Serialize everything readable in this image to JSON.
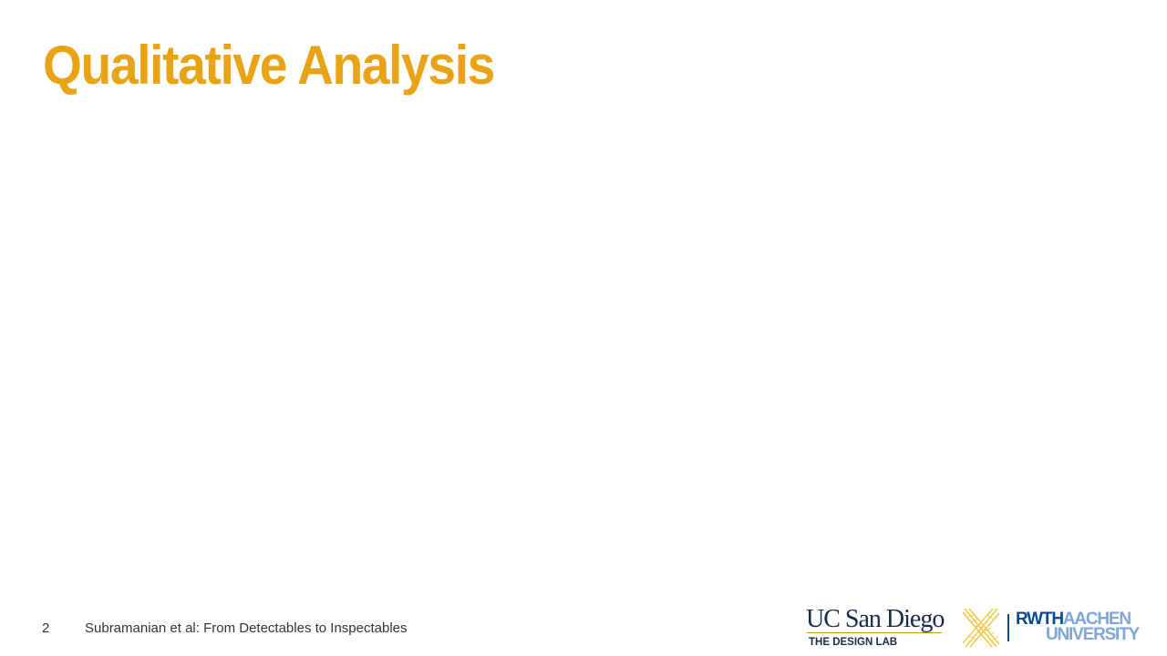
{
  "slide": {
    "title": "Qualitative Analysis"
  },
  "footer": {
    "page_number": "2",
    "citation": "Subramanian et al: From Detectables to Inspectables"
  },
  "logos": {
    "ucsd_wordmark": "UC San Diego",
    "ucsd_subtitle": "THE DESIGN LAB",
    "x_mark_icon": "x-mark-icon",
    "rwth_line1_strong": "RWTH",
    "rwth_line1_light": "AACHEN",
    "rwth_line2": "UNIVERSITY"
  },
  "colors": {
    "title": "#e8a317",
    "footer_text": "#333333",
    "ucsd_navy": "#182b49",
    "ucsd_gold": "#c69214",
    "rwth_blue": "#0b4a8f",
    "rwth_light_blue": "#7ea6d6",
    "x_mark": "#f2c94c"
  }
}
